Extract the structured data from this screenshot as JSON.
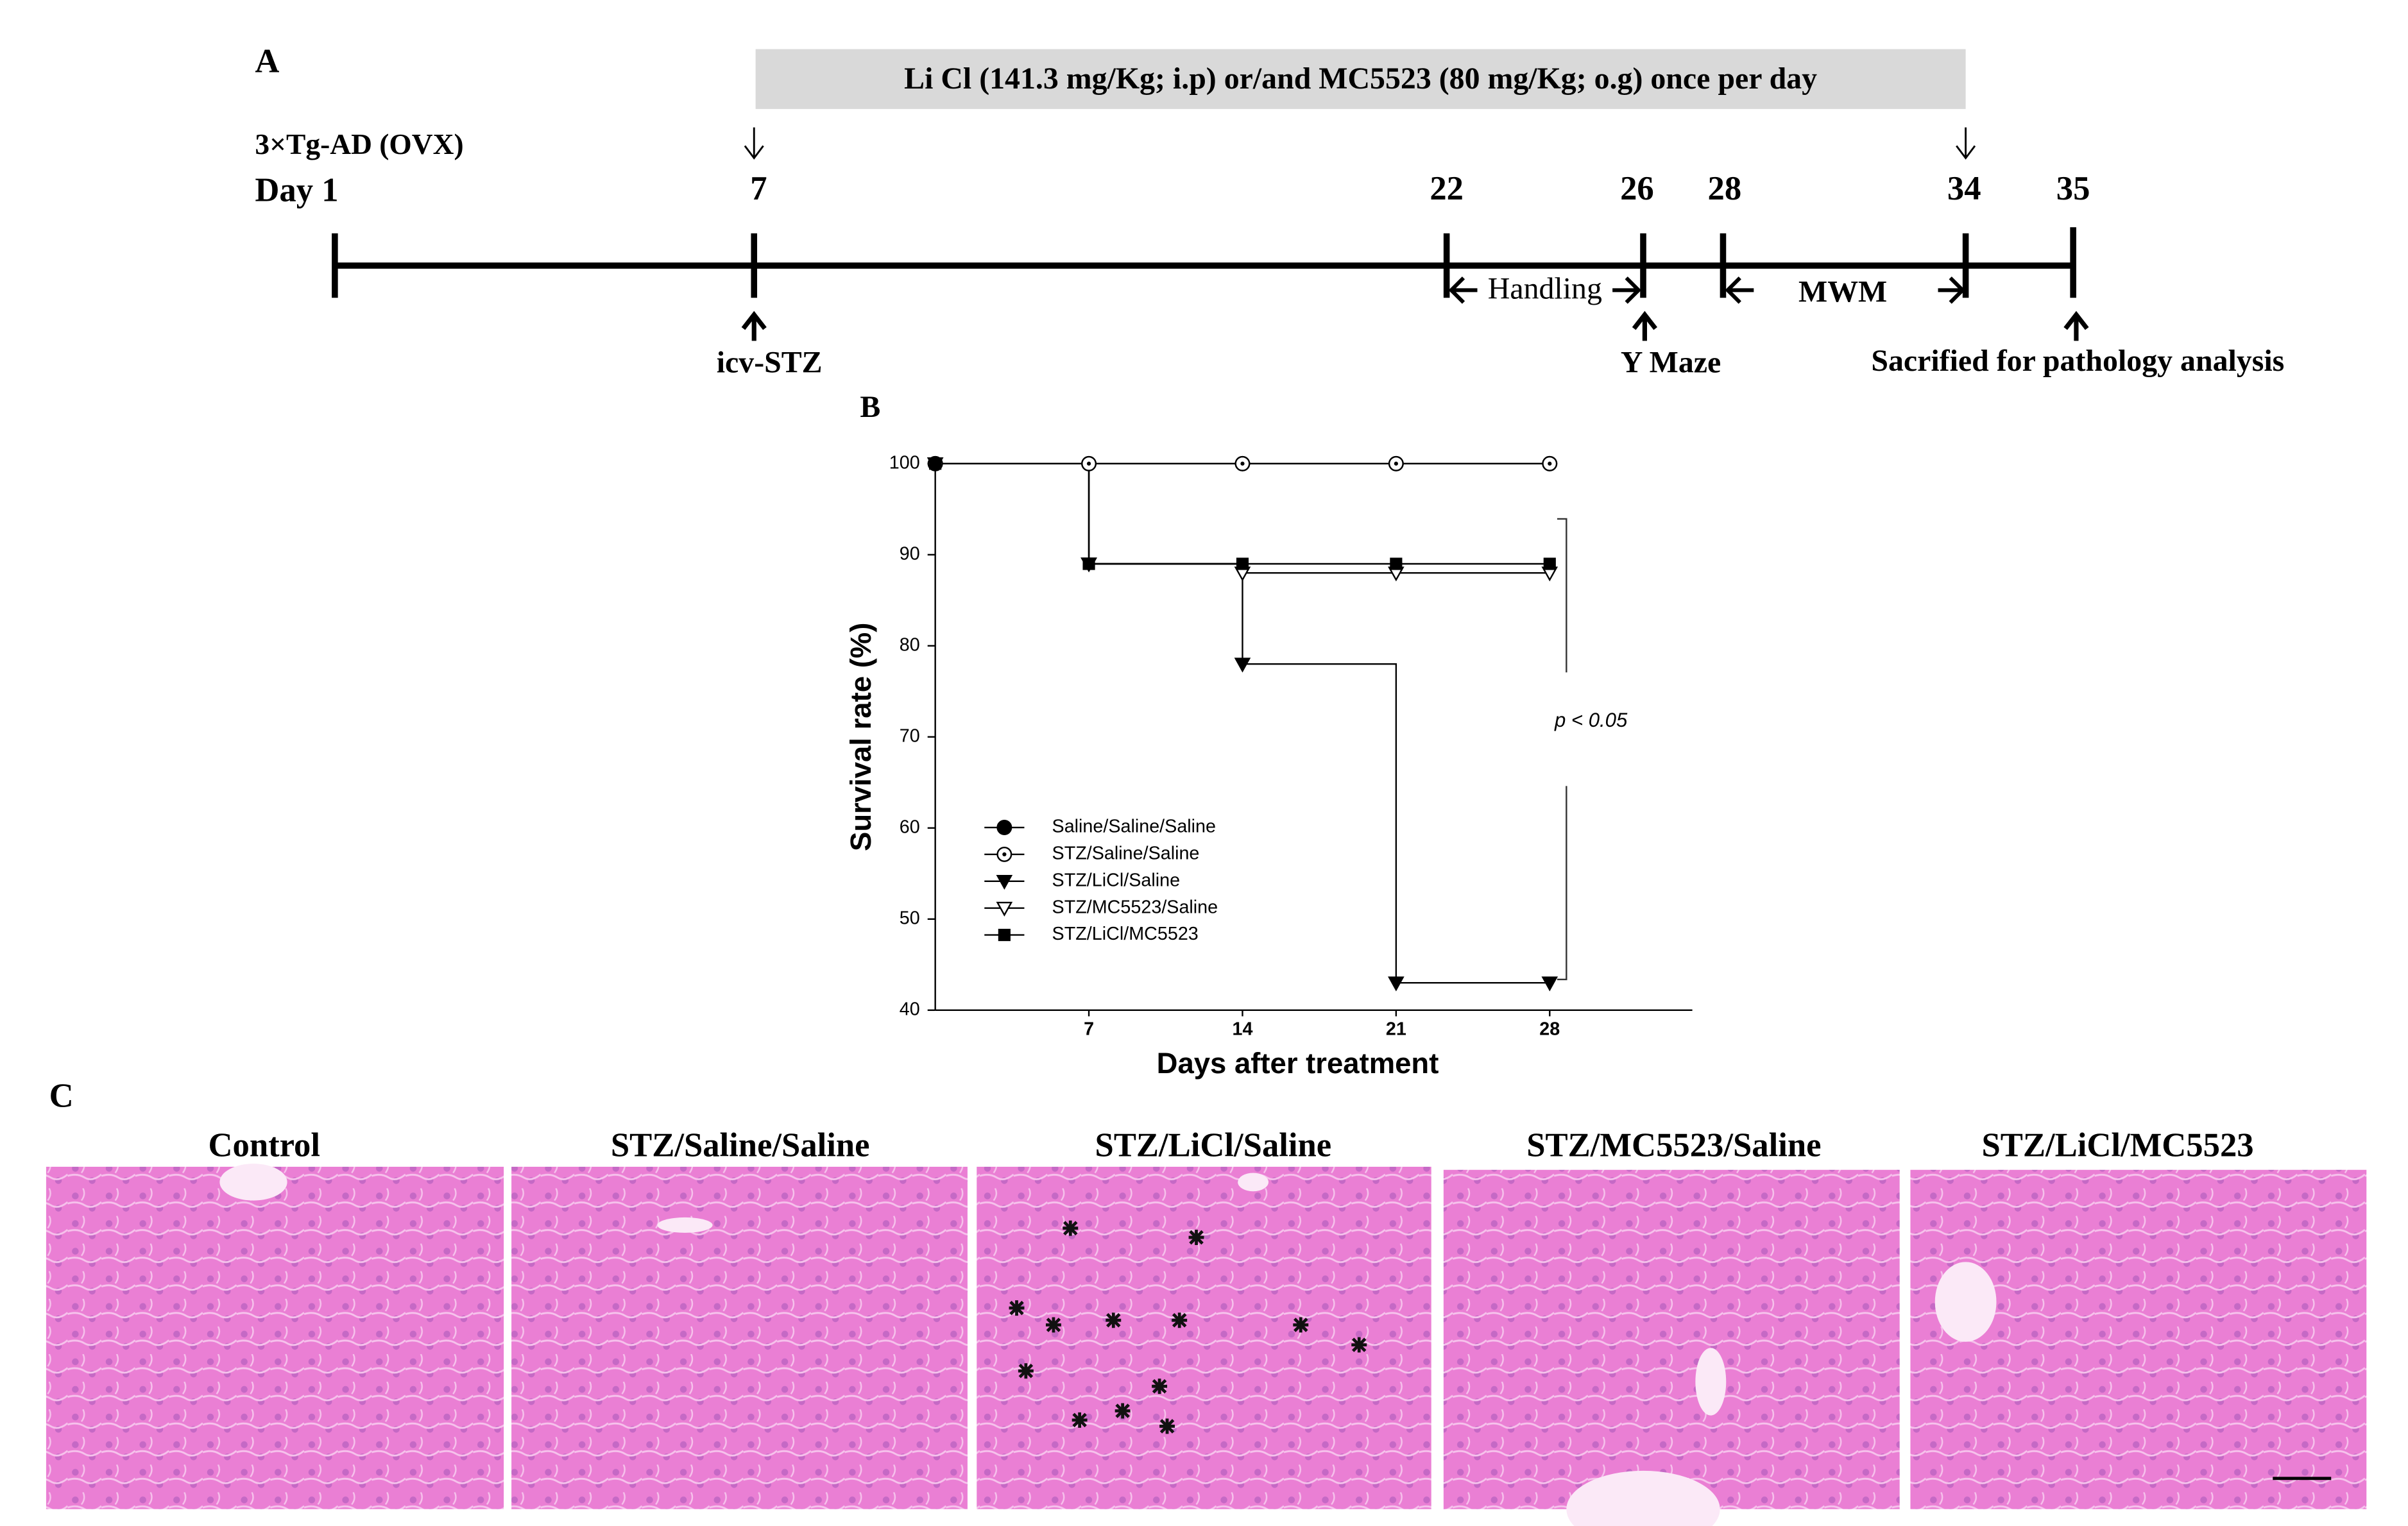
{
  "panel_a": {
    "label": "A",
    "treatment": "Li Cl (141.3 mg/Kg; i.p) or/and MC5523 (80 mg/Kg; o.g) once per day",
    "model": "3×Tg-AD (OVX)",
    "day_start": "Day 1",
    "days": [
      "7",
      "22",
      "26",
      "28",
      "34",
      "35"
    ],
    "intervals": [
      "Handling",
      "MWM"
    ],
    "events": [
      "icv-STZ",
      "Y Maze",
      "Sacrified for pathology analysis"
    ]
  },
  "chart_data": {
    "type": "line",
    "panel_label": "B",
    "step": "post",
    "x_label": "Days after treatment",
    "y_label": "Survival rate (%)",
    "x": [
      0,
      7,
      14,
      21,
      28
    ],
    "xlim": [
      0,
      34.5
    ],
    "xticks": [
      7,
      14,
      21,
      28
    ],
    "ylim": [
      40,
      100
    ],
    "yticks": [
      40,
      50,
      60,
      70,
      80,
      90,
      100
    ],
    "legend": "lower left",
    "annotation": "p < 0.05",
    "series": [
      {
        "name": "Saline/Saline/Saline",
        "color": "#000000",
        "marker": "circle-filled",
        "values": [
          100,
          100,
          100,
          100,
          100
        ]
      },
      {
        "name": "STZ/Saline/Saline",
        "color": "#000000",
        "marker": "circle-open",
        "values": [
          100,
          100,
          100,
          100,
          100
        ]
      },
      {
        "name": "STZ/LiCl/Saline",
        "color": "#000000",
        "marker": "triangle-filled",
        "values": [
          100,
          89,
          78,
          43,
          43
        ]
      },
      {
        "name": "STZ/MC5523/Saline",
        "color": "#000000",
        "marker": "triangle-open",
        "values": [
          100,
          89,
          88,
          88,
          88
        ]
      },
      {
        "name": "STZ/LiCl/MC5523",
        "color": "#000000",
        "marker": "square-filled",
        "values": [
          100,
          89,
          89,
          89,
          89
        ]
      }
    ]
  },
  "panel_c": {
    "label": "C",
    "images": [
      "Control",
      "STZ/Saline/Saline",
      "STZ/LiCl/Saline",
      "STZ/MC5523/Saline",
      "STZ/LiCl/MC5523"
    ]
  }
}
